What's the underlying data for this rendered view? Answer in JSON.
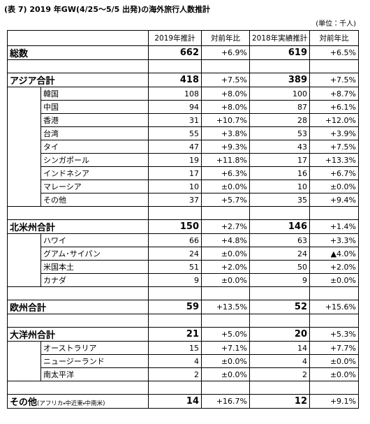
{
  "title": "(表 7) 2019 年GW(4/25～5/5 出発)の海外旅行人数推計",
  "unit": "(単位：千人)",
  "columns": [
    "2019年推計",
    "対前年比",
    "2018年実績推計",
    "対前年比"
  ],
  "total": [
    "総数",
    662,
    "+6.9%",
    619,
    "+6.5%"
  ],
  "sections": [
    {
      "head": [
        "アジア合計",
        418,
        "+7.5%",
        389,
        "+7.5%"
      ],
      "items": [
        [
          "韓国",
          108,
          "+8.0%",
          100,
          "+8.7%"
        ],
        [
          "中国",
          94,
          "+8.0%",
          87,
          "+6.1%"
        ],
        [
          "香港",
          31,
          "+10.7%",
          28,
          "+12.0%"
        ],
        [
          "台湾",
          55,
          "+3.8%",
          53,
          "+3.9%"
        ],
        [
          "タイ",
          47,
          "+9.3%",
          43,
          "+7.5%"
        ],
        [
          "シンガポール",
          19,
          "+11.8%",
          17,
          "+13.3%"
        ],
        [
          "インドネシア",
          17,
          "+6.3%",
          16,
          "+6.7%"
        ],
        [
          "マレーシア",
          10,
          "±0.0%",
          10,
          "±0.0%"
        ],
        [
          "その他",
          37,
          "+5.7%",
          35,
          "+9.4%"
        ]
      ]
    },
    {
      "head": [
        "北米州合計",
        150,
        "+2.7%",
        146,
        "+1.4%"
      ],
      "items": [
        [
          "ハワイ",
          66,
          "+4.8%",
          63,
          "+3.3%"
        ],
        [
          "グアム･サイパン",
          24,
          "±0.0%",
          24,
          "▲4.0%"
        ],
        [
          "米国本土",
          51,
          "+2.0%",
          50,
          "+2.0%"
        ],
        [
          "カナダ",
          9,
          "±0.0%",
          9,
          "±0.0%"
        ]
      ]
    },
    {
      "head": [
        "欧州合計",
        59,
        "+13.5%",
        52,
        "+15.6%"
      ],
      "items": []
    },
    {
      "head": [
        "大洋州合計",
        21,
        "+5.0%",
        20,
        "+5.3%"
      ],
      "items": [
        [
          "オーストラリア",
          15,
          "+7.1%",
          14,
          "+7.7%"
        ],
        [
          "ニュージーランド",
          4,
          "±0.0%",
          4,
          "±0.0%"
        ],
        [
          "南太平洋",
          2,
          "±0.0%",
          2,
          "±0.0%"
        ]
      ]
    }
  ],
  "other": {
    "name": "その他",
    "note": "(アフリカ・中近東・中南米)",
    "cells": [
      14,
      "+16.7%",
      12,
      "+9.1%"
    ]
  }
}
